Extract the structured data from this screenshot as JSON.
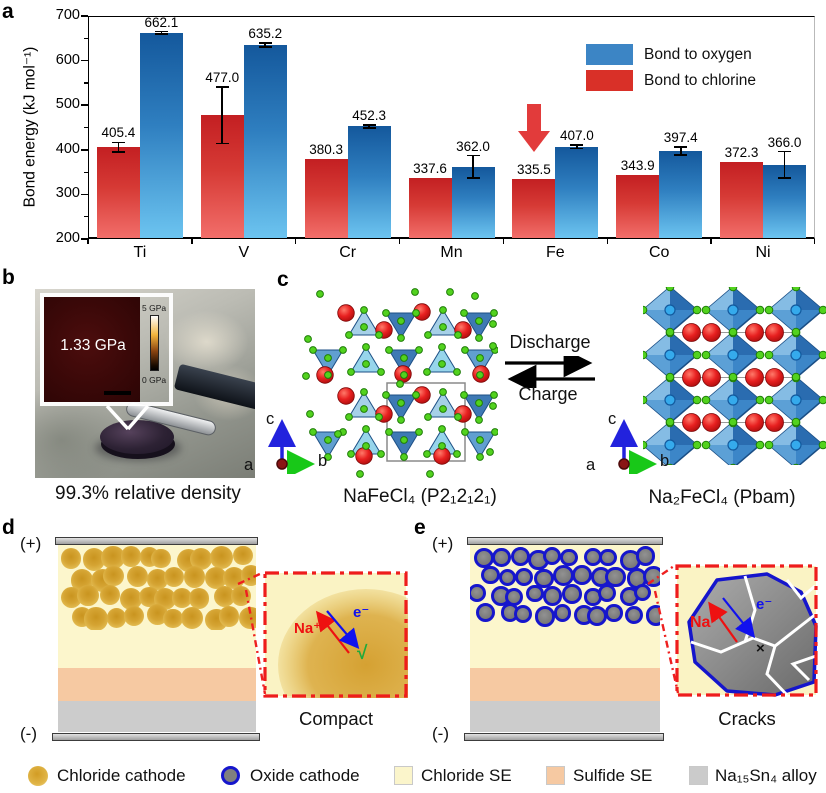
{
  "panel_labels": {
    "a": "a",
    "b": "b",
    "c": "c",
    "d": "d",
    "e": "e"
  },
  "chart_data": {
    "type": "bar",
    "title": "",
    "xlabel": "",
    "ylabel": "Bond energy (kJ mol⁻¹)",
    "ylim": [
      200,
      700
    ],
    "yticks": [
      200,
      300,
      400,
      500,
      600,
      700
    ],
    "minor_yticks": [
      250,
      350,
      450,
      550,
      650
    ],
    "grid": false,
    "legend_position": "top-right",
    "categories": [
      "Ti",
      "V",
      "Cr",
      "Mn",
      "Fe",
      "Co",
      "Ni"
    ],
    "series": [
      {
        "name": "Bond to oxygen",
        "side": "right",
        "color": "#3c85c5",
        "gradient": [
          "#14589c",
          "#2f7fc0",
          "#6cc4f0"
        ],
        "values": [
          662.1,
          635.2,
          452.3,
          362.0,
          407.0,
          397.4,
          366.0
        ],
        "errors": [
          3,
          4,
          4,
          25,
          4,
          9,
          30
        ]
      },
      {
        "name": "Bond to chlorine",
        "side": "left",
        "color": "#d93028",
        "gradient": [
          "#c31f22",
          "#d63a35",
          "#f26e6a"
        ],
        "values": [
          405.4,
          477.0,
          380.3,
          337.6,
          335.5,
          343.9,
          372.3
        ],
        "errors": [
          11,
          63,
          0,
          0,
          0,
          0,
          0
        ]
      }
    ],
    "annotation": {
      "shape": "down-arrow",
      "color": "#e23b3b",
      "category": "Fe",
      "series": "Bond to chlorine"
    }
  },
  "panel_b": {
    "pressure_label": "1.33 GPa",
    "scale_max": "5 GPa",
    "scale_min": "0 GPa",
    "caption": "99.3% relative density"
  },
  "panel_c": {
    "forward_label": "Discharge",
    "backward_label": "Charge",
    "left_caption": "NaFeCl₄ (P2₁2₁2₁)",
    "right_caption": "Na₂FeCl₄ (Pbam)",
    "axes": {
      "up": "c",
      "right": "b",
      "out": "a"
    }
  },
  "panel_d": {
    "positive": "(+)",
    "negative": "(-)",
    "ion_label": "Na⁺",
    "electron_label": "e⁻",
    "check": "√",
    "caption": "Compact"
  },
  "panel_e": {
    "positive": "(+)",
    "negative": "(-)",
    "ion_label": "Na⁺",
    "electron_label": "e⁻",
    "cross": "×",
    "caption": "Cracks"
  },
  "bottom_legend": {
    "items": [
      {
        "icon": "chloride-cathode-swatch",
        "label": "Chloride cathode",
        "color": "#d9a32e"
      },
      {
        "icon": "oxide-cathode-swatch",
        "label": "Oxide cathode",
        "color": "#7f7f7f",
        "border": "#1616cc"
      },
      {
        "icon": "chloride-se-swatch",
        "label": "Chloride SE",
        "color": "#fbf5cb"
      },
      {
        "icon": "sulfide-se-swatch",
        "label": "Sulfide SE",
        "color": "#f6c9a2"
      },
      {
        "icon": "alloy-swatch",
        "label": "Na₁₅Sn₄ alloy",
        "color": "#cbcbcb"
      }
    ]
  },
  "colors": {
    "chloride_se": "#fcf6cc",
    "sulfide_se": "#f6c9a2",
    "alloy": "#cccccc",
    "zoom_box_border": "#ee1c1c",
    "na_ion": "#ee1111",
    "electron": "#1111ee",
    "check": "#1faa3c"
  }
}
